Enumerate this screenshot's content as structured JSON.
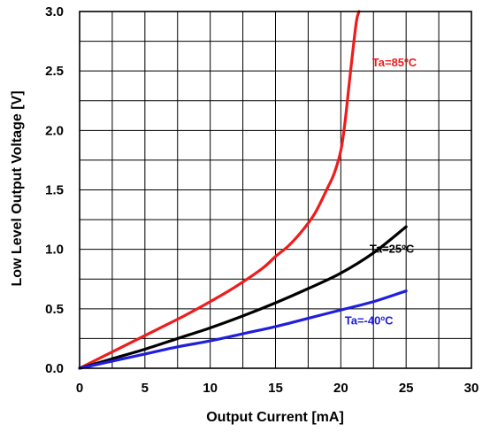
{
  "chart_data": {
    "type": "line",
    "title": "",
    "xlabel": "Output Current [mA]",
    "ylabel": "Low Level Output Voltage [V]",
    "xlim": [
      0,
      30
    ],
    "ylim": [
      0,
      3.0
    ],
    "x_ticks": [
      "0",
      "5",
      "10",
      "15",
      "20",
      "25",
      "30"
    ],
    "y_ticks": [
      "0.0",
      "0.5",
      "1.0",
      "1.5",
      "2.0",
      "2.5",
      "3.0"
    ],
    "grid": true,
    "series": [
      {
        "name": "Ta=85ºC",
        "color": "#ee1c1c",
        "x": [
          0,
          2,
          4,
          6,
          8,
          10,
          12,
          14,
          15,
          16,
          17,
          18,
          19,
          19.5,
          20,
          20.3,
          20.6,
          20.9,
          21.2,
          21.4
        ],
        "y": [
          0,
          0.11,
          0.22,
          0.33,
          0.44,
          0.56,
          0.69,
          0.84,
          0.94,
          1.03,
          1.15,
          1.3,
          1.52,
          1.64,
          1.83,
          2.05,
          2.35,
          2.65,
          2.92,
          3.0
        ]
      },
      {
        "name": "Ta=25ºC",
        "color": "#000000",
        "x": [
          0,
          2.5,
          5,
          7.5,
          10,
          12.5,
          15,
          17.5,
          20,
          22.5,
          25
        ],
        "y": [
          0,
          0.08,
          0.16,
          0.25,
          0.34,
          0.44,
          0.55,
          0.67,
          0.8,
          0.97,
          1.19
        ]
      },
      {
        "name": "Ta=-40ºC",
        "color": "#1f1fdc",
        "x": [
          0,
          2.5,
          5,
          7.5,
          10,
          12.5,
          15,
          17.5,
          20,
          22.5,
          25
        ],
        "y": [
          0,
          0.06,
          0.12,
          0.18,
          0.23,
          0.29,
          0.35,
          0.42,
          0.49,
          0.56,
          0.65
        ]
      }
    ]
  }
}
